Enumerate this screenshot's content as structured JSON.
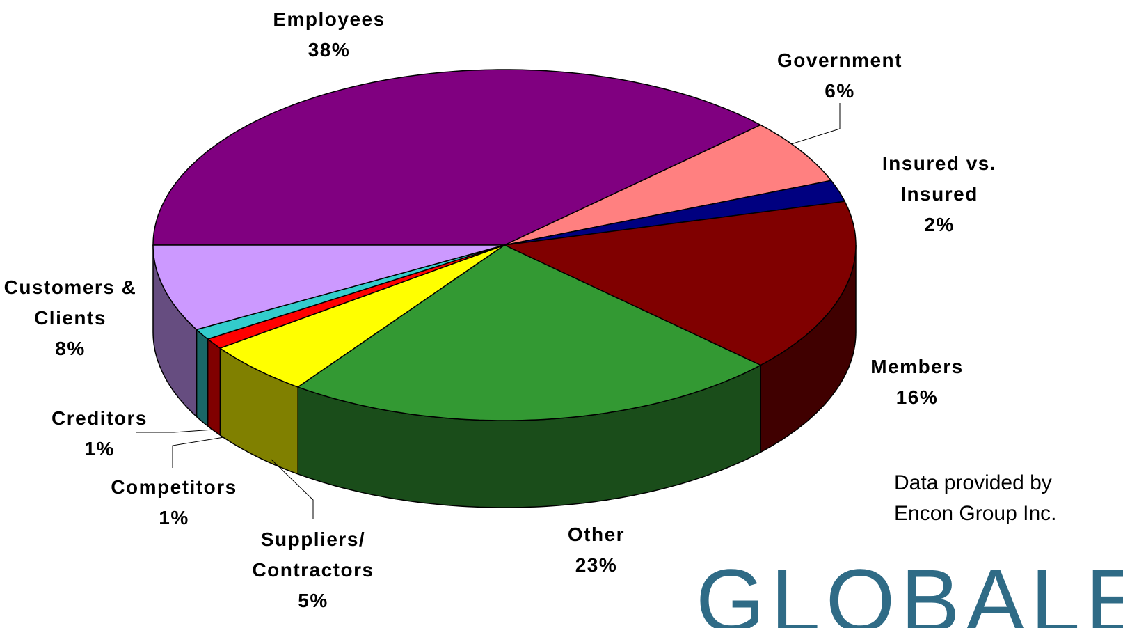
{
  "chart_data": {
    "type": "pie",
    "categories": [
      "Employees",
      "Government",
      "Insured vs. Insured",
      "Members",
      "Other",
      "Suppliers/ Contractors",
      "Competitors",
      "Creditors",
      "Customers & Clients"
    ],
    "values": [
      38,
      6,
      2,
      16,
      23,
      5,
      1,
      1,
      8
    ],
    "value_labels": [
      "38%",
      "6%",
      "2%",
      "16%",
      "23%",
      "5%",
      "1%",
      "1%",
      "8%"
    ],
    "colors": [
      "#800080",
      "#ff8080",
      "#000080",
      "#800000",
      "#339933",
      "#ffff00",
      "#ff0000",
      "#33cccc",
      "#cc99ff"
    ],
    "annotation": "Data provided by Encon Group Inc.",
    "logo": "GLOBALEX"
  }
}
